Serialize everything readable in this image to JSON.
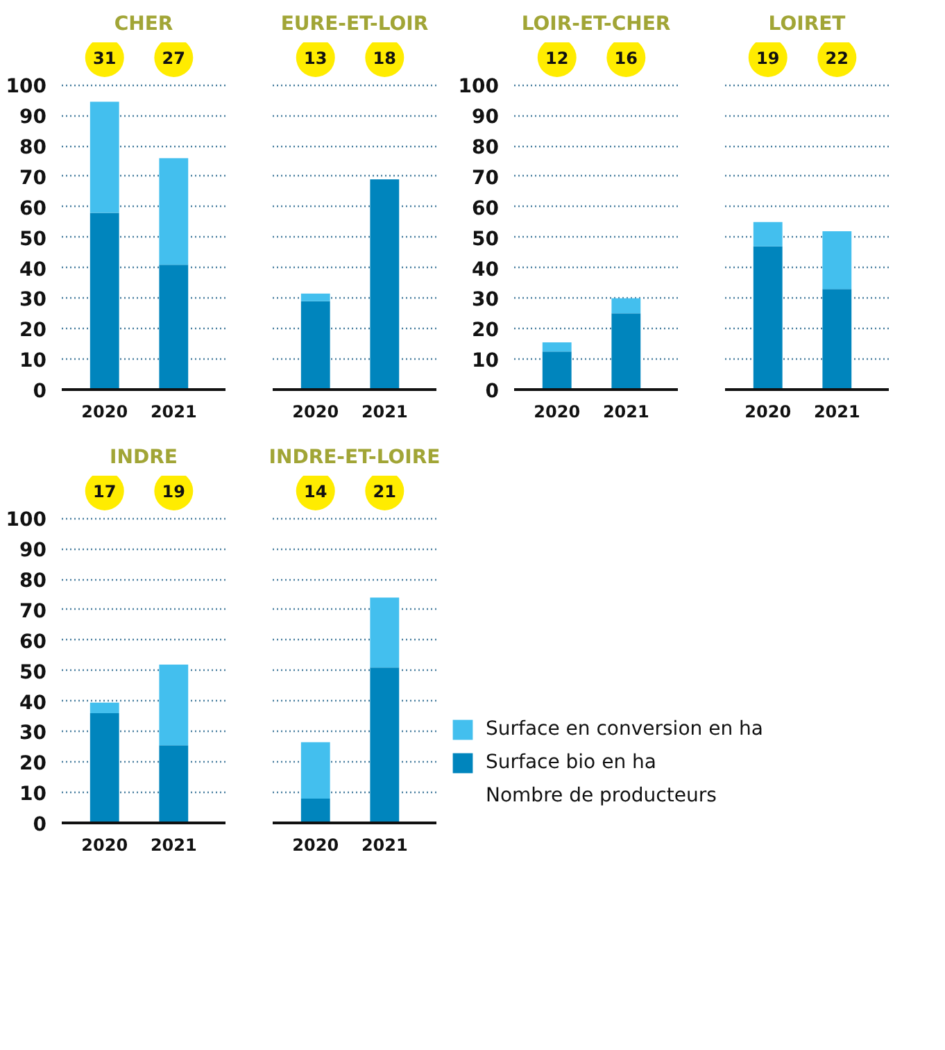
{
  "chart_data": [
    {
      "type": "bar",
      "title": "CHER",
      "categories": [
        "2020",
        "2021"
      ],
      "stacked": true,
      "series": [
        {
          "color": "#0085bd",
          "values": [
            58,
            41
          ]
        },
        {
          "color": "#43bfee",
          "values": [
            36.5,
            35
          ]
        }
      ],
      "ylim": [
        0,
        100
      ],
      "yticks": [
        0,
        10,
        20,
        30,
        40,
        50,
        60,
        70,
        80,
        90,
        100
      ],
      "grid": "y",
      "annotations": [
        "31",
        "27"
      ]
    },
    {
      "type": "bar",
      "title": "EURE-ET-LOIR",
      "categories": [
        "2020",
        "2021"
      ],
      "stacked": true,
      "series": [
        {
          "color": "#0085bd",
          "values": [
            29,
            69
          ]
        },
        {
          "color": "#43bfee",
          "values": [
            2.5,
            0
          ]
        }
      ],
      "ylim": [
        0,
        100
      ],
      "yticks": [
        0,
        10,
        20,
        30,
        40,
        50,
        60,
        70,
        80,
        90,
        100
      ],
      "grid": "y",
      "tick_labels": "x",
      "annotations": [
        "13",
        "18"
      ]
    },
    {
      "type": "bar",
      "title": "LOIR-ET-CHER",
      "categories": [
        "2020",
        "2021"
      ],
      "stacked": true,
      "series": [
        {
          "color": "#0085bd",
          "values": [
            12.5,
            25
          ]
        },
        {
          "color": "#43bfee",
          "values": [
            3,
            5
          ]
        }
      ],
      "ylim": [
        0,
        100
      ],
      "yticks": [
        0,
        10,
        20,
        30,
        40,
        50,
        60,
        70,
        80,
        90,
        100
      ],
      "grid": "y",
      "annotations": [
        "12",
        "16"
      ]
    },
    {
      "type": "bar",
      "title": "LOIRET",
      "categories": [
        "2020",
        "2021"
      ],
      "stacked": true,
      "series": [
        {
          "color": "#0085bd",
          "values": [
            47,
            33
          ]
        },
        {
          "color": "#43bfee",
          "values": [
            8,
            19
          ]
        }
      ],
      "ylim": [
        0,
        100
      ],
      "yticks": [
        0,
        10,
        20,
        30,
        40,
        50,
        60,
        70,
        80,
        90,
        100
      ],
      "grid": "y",
      "tick_labels": "x",
      "annotations": [
        "19",
        "22"
      ]
    },
    {
      "type": "bar",
      "title": "INDRE",
      "categories": [
        "2020",
        "2021"
      ],
      "stacked": true,
      "series": [
        {
          "color": "#0085bd",
          "values": [
            36,
            25.5
          ]
        },
        {
          "color": "#43bfee",
          "values": [
            3.5,
            26.5
          ]
        }
      ],
      "ylim": [
        0,
        100
      ],
      "yticks": [
        0,
        10,
        20,
        30,
        40,
        50,
        60,
        70,
        80,
        90,
        100
      ],
      "grid": "y",
      "annotations": [
        "17",
        "19"
      ]
    },
    {
      "type": "bar",
      "title": "INDRE-ET-LOIRE",
      "categories": [
        "2020",
        "2021"
      ],
      "stacked": true,
      "series": [
        {
          "name": "Surface bio en ha",
          "color": "#0085bd",
          "values": [
            8,
            51
          ]
        },
        {
          "name": "Surface en conversion en ha",
          "color": "#43bfee",
          "values": [
            18.5,
            23
          ]
        }
      ],
      "ylim": [
        0,
        100
      ],
      "yticks": [
        0,
        10,
        20,
        30,
        40,
        50,
        60,
        70,
        80,
        90,
        100
      ],
      "grid": "y",
      "tick_labels": "x",
      "legend": "bottom right",
      "annotations": [
        "14",
        "21",
        "Nombre de producteurs"
      ]
    }
  ]
}
